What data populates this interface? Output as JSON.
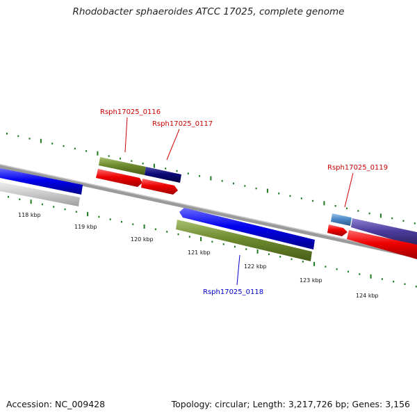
{
  "title": "Rhodobacter sphaeroides ATCC 17025, complete genome",
  "footer": {
    "accession": "Accession: NC_009428",
    "stats": "Topology: circular; Length: 3,217,726 bp; Genes: 3,156"
  },
  "colors": {
    "backbone": "#8c8c8c",
    "tick": "#1e7a1e",
    "label_forward": "#cc0000",
    "label_reverse": "#0000cc"
  },
  "ticks": [
    {
      "label": "118 kbp"
    },
    {
      "label": "119 kbp"
    },
    {
      "label": "120 kbp"
    },
    {
      "label": "121 kbp"
    },
    {
      "label": "122 kbp"
    },
    {
      "label": "123 kbp"
    },
    {
      "label": "124 kbp"
    }
  ],
  "labels": [
    {
      "text": "Rsph17025_0116"
    },
    {
      "text": "Rsph17025_0117"
    },
    {
      "text": "Rsph17025_0118"
    },
    {
      "text": "Rsph17025_0119"
    }
  ]
}
